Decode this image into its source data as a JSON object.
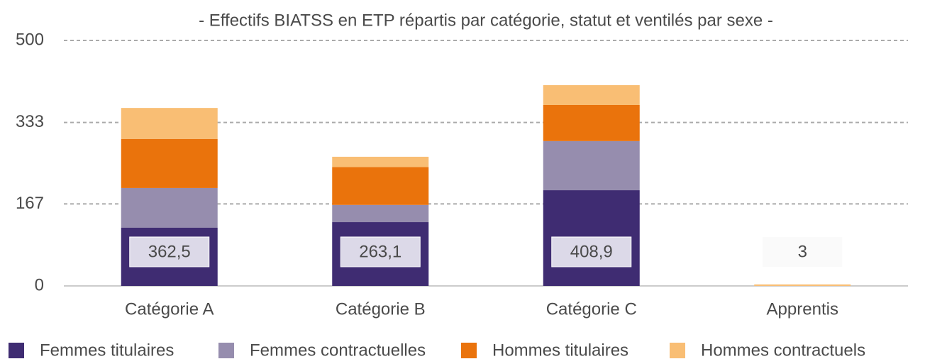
{
  "chart_data": {
    "type": "bar",
    "stacked": true,
    "title": "- Effectifs BIATSS en ETP répartis par catégorie, statut et ventilés par sexe -",
    "categories": [
      "Catégorie A",
      "Catégorie B",
      "Catégorie C",
      "Apprentis"
    ],
    "series": [
      {
        "name": "Femmes titulaires",
        "color": "#3f2c72",
        "values": [
          118.5,
          130,
          195,
          0
        ]
      },
      {
        "name": "Femmes contractuelles",
        "color": "#968dae",
        "values": [
          81,
          35,
          100,
          0
        ]
      },
      {
        "name": "Hommes titulaires",
        "color": "#ea730c",
        "values": [
          100,
          77,
          73.5,
          0
        ]
      },
      {
        "name": "Hommes contractuels",
        "color": "#f9be74",
        "values": [
          63,
          21.1,
          40.4,
          3
        ]
      }
    ],
    "totals": [
      362.5,
      263.1,
      408.9,
      3
    ],
    "total_labels": [
      "362,5",
      "263,1",
      "408,9",
      "3"
    ],
    "ylim": [
      0,
      500
    ],
    "yticks": [
      0,
      167,
      333,
      500
    ],
    "grid": true
  }
}
